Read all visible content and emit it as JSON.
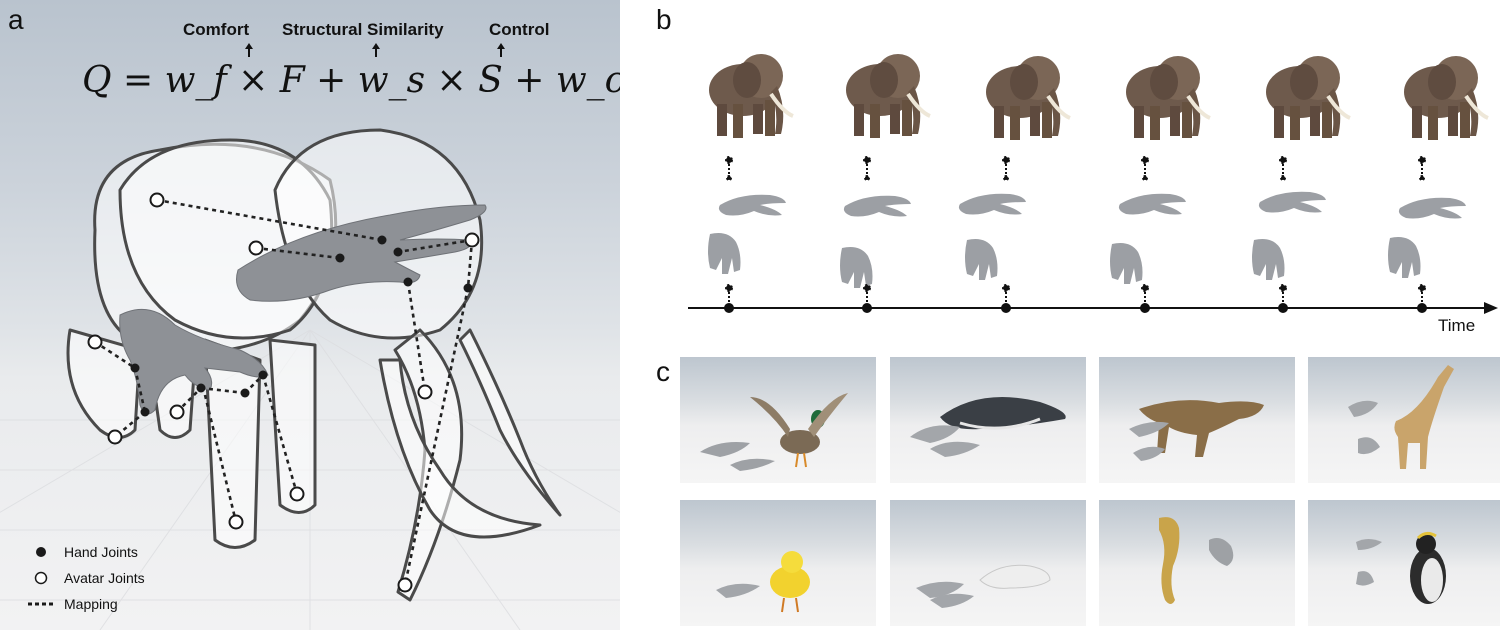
{
  "panel_a": {
    "letter": "a",
    "terms": [
      "Comfort",
      "Structural Similarity",
      "Control"
    ],
    "formula": "Q = w_f × F + w_s × S + w_c × C",
    "legend": [
      {
        "label": "Hand Joints",
        "symbol": "filled-dot"
      },
      {
        "label": "Avatar Joints",
        "symbol": "hollow-circle"
      },
      {
        "label": "Mapping",
        "symbol": "dotted-line"
      }
    ]
  },
  "panel_b": {
    "letter": "b",
    "axis_label": "Time",
    "frames": 6
  },
  "panel_c": {
    "letter": "c",
    "thumbnails": [
      "duck",
      "whale",
      "t-rex",
      "giraffe",
      "chick",
      "seal",
      "seahorse",
      "penguin"
    ]
  },
  "colors": {
    "avatar_outline": "#4a4a4a",
    "hand_gray": "#8e9196",
    "elephant_brown": "#6e5a4c",
    "mapping_line": "#222222"
  }
}
